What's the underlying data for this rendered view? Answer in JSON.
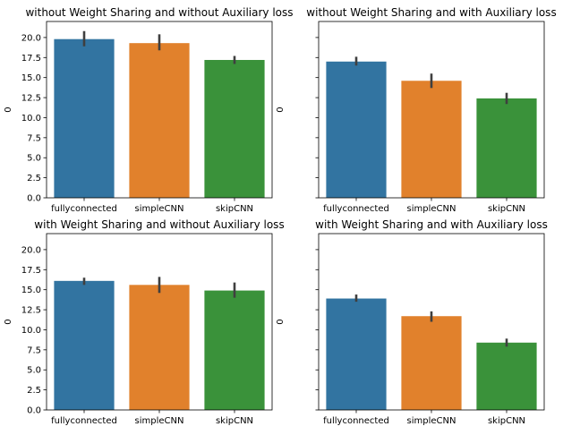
{
  "chart_data": [
    {
      "type": "bar",
      "title": "without Weight Sharing and without Auxiliary loss",
      "xlabel": "",
      "ylabel": "0",
      "categories": [
        "fullyconnected",
        "simpleCNN",
        "skipCNN"
      ],
      "values": [
        19.8,
        19.3,
        17.2
      ],
      "error_low": [
        18.9,
        18.4,
        16.7
      ],
      "error_high": [
        20.8,
        20.4,
        17.7
      ],
      "ylim": [
        0,
        22
      ],
      "yticks": [
        "0.0",
        "2.5",
        "5.0",
        "7.5",
        "10.0",
        "12.5",
        "15.0",
        "17.5",
        "20.0"
      ],
      "show_ytick_labels": true
    },
    {
      "type": "bar",
      "title": "without Weight Sharing and with Auxiliary loss",
      "xlabel": "",
      "ylabel": "0",
      "categories": [
        "fullyconnected",
        "simpleCNN",
        "skipCNN"
      ],
      "values": [
        17.0,
        14.6,
        12.4
      ],
      "error_low": [
        16.5,
        13.7,
        11.7
      ],
      "error_high": [
        17.6,
        15.5,
        13.1
      ],
      "ylim": [
        0,
        22
      ],
      "yticks": [
        "0.0",
        "2.5",
        "5.0",
        "7.5",
        "10.0",
        "12.5",
        "15.0",
        "17.5",
        "20.0"
      ],
      "show_ytick_labels": false
    },
    {
      "type": "bar",
      "title": "with Weight Sharing and without Auxiliary loss",
      "xlabel": "",
      "ylabel": "0",
      "categories": [
        "fullyconnected",
        "simpleCNN",
        "skipCNN"
      ],
      "values": [
        16.1,
        15.6,
        14.9
      ],
      "error_low": [
        15.6,
        14.6,
        14.0
      ],
      "error_high": [
        16.5,
        16.6,
        15.9
      ],
      "ylim": [
        0,
        22
      ],
      "yticks": [
        "0.0",
        "2.5",
        "5.0",
        "7.5",
        "10.0",
        "12.5",
        "15.0",
        "17.5",
        "20.0"
      ],
      "show_ytick_labels": true
    },
    {
      "type": "bar",
      "title": "with Weight Sharing and with Auxiliary loss",
      "xlabel": "",
      "ylabel": "0",
      "categories": [
        "fullyconnected",
        "simpleCNN",
        "skipCNN"
      ],
      "values": [
        13.9,
        11.7,
        8.4
      ],
      "error_low": [
        13.5,
        11.0,
        7.9
      ],
      "error_high": [
        14.4,
        12.3,
        8.9
      ],
      "ylim": [
        0,
        22
      ],
      "yticks": [
        "0.0",
        "2.5",
        "5.0",
        "7.5",
        "10.0",
        "12.5",
        "15.0",
        "17.5",
        "20.0"
      ],
      "show_ytick_labels": false
    }
  ],
  "colors": {
    "bars": [
      "#3274a1",
      "#e1812c",
      "#3a923a"
    ],
    "error_bar": "#3f3f3f",
    "axis": "#000000"
  }
}
